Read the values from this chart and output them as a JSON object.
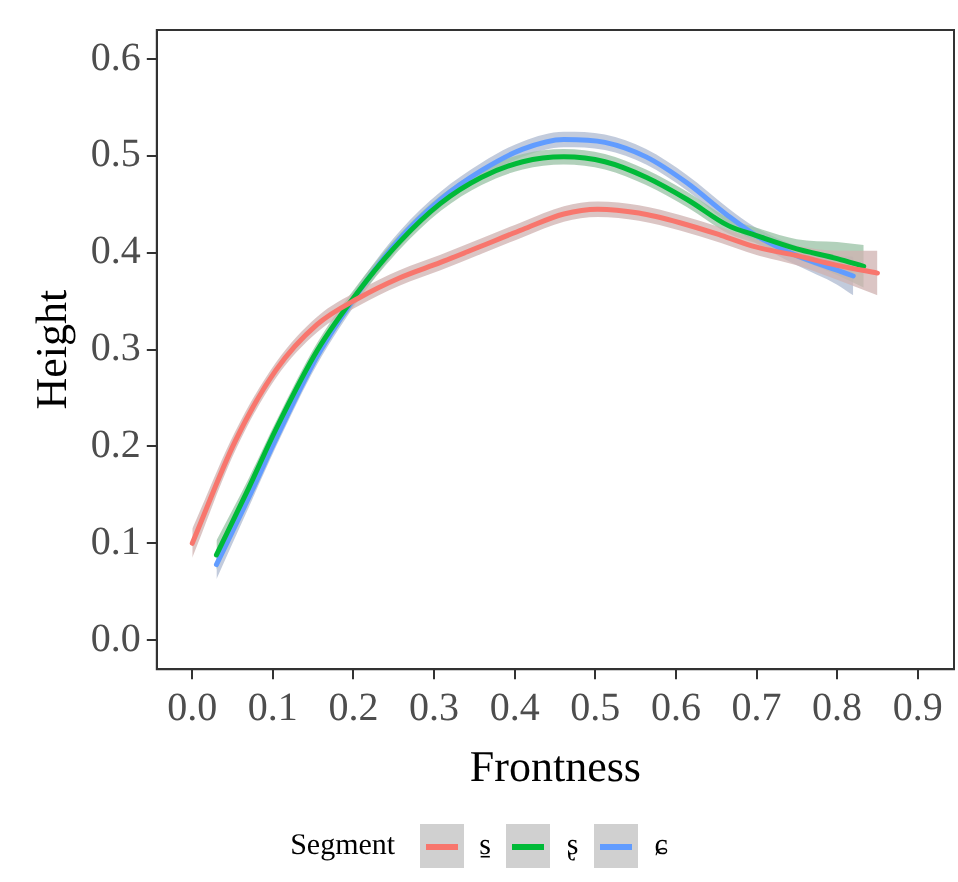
{
  "chart_data": {
    "type": "line",
    "xlabel": "Frontness",
    "ylabel": "Height",
    "legend_title": "Segment",
    "legend": "bottom",
    "grid": false,
    "marker": "none",
    "line_style": "solid",
    "xlim": [
      -0.044,
      0.945
    ],
    "ylim": [
      -0.03,
      0.63
    ],
    "xticks": [
      {
        "value": 0,
        "label": "0.0"
      },
      {
        "value": 0.1,
        "label": "0.1"
      },
      {
        "value": 0.2,
        "label": "0.2"
      },
      {
        "value": 0.3,
        "label": "0.3"
      },
      {
        "value": 0.4,
        "label": "0.4"
      },
      {
        "value": 0.5,
        "label": "0.5"
      },
      {
        "value": 0.6,
        "label": "0.6"
      },
      {
        "value": 0.7,
        "label": "0.7"
      },
      {
        "value": 0.8,
        "label": "0.8"
      },
      {
        "value": 0.9,
        "label": "0.9"
      }
    ],
    "yticks": [
      {
        "value": 0,
        "label": "0.0"
      },
      {
        "value": 0.1,
        "label": "0.1"
      },
      {
        "value": 0.2,
        "label": "0.2"
      },
      {
        "value": 0.3,
        "label": "0.3"
      },
      {
        "value": 0.4,
        "label": "0.4"
      },
      {
        "value": 0.5,
        "label": "0.5"
      },
      {
        "value": 0.6,
        "label": "0.6"
      }
    ],
    "series": [
      {
        "name": "s̱",
        "color": "#f8766d",
        "x": [
          0,
          0.053,
          0.104,
          0.155,
          0.206,
          0.257,
          0.308,
          0.359,
          0.41,
          0.461,
          0.503,
          0.554,
          0.605,
          0.656,
          0.699,
          0.75,
          0.8,
          0.85
        ],
        "values": [
          0.1,
          0.205,
          0.279,
          0.326,
          0.353,
          0.374,
          0.39,
          0.407,
          0.424,
          0.44,
          0.445,
          0.441,
          0.431,
          0.418,
          0.406,
          0.397,
          0.387,
          0.379
        ],
        "lower": [
          0.085,
          0.195,
          0.271,
          0.318,
          0.345,
          0.366,
          0.382,
          0.399,
          0.416,
          0.432,
          0.437,
          0.433,
          0.423,
          0.41,
          0.398,
          0.387,
          0.372,
          0.356
        ],
        "upper": [
          0.115,
          0.215,
          0.287,
          0.334,
          0.361,
          0.382,
          0.398,
          0.415,
          0.432,
          0.448,
          0.453,
          0.449,
          0.439,
          0.426,
          0.414,
          0.407,
          0.402,
          0.402
        ]
      },
      {
        "name": "ʂ",
        "color": "#00ba38",
        "x": [
          0.03,
          0.07,
          0.104,
          0.155,
          0.206,
          0.257,
          0.308,
          0.359,
          0.41,
          0.461,
          0.512,
          0.563,
          0.614,
          0.665,
          0.699,
          0.75,
          0.8,
          0.833
        ],
        "values": [
          0.088,
          0.157,
          0.218,
          0.299,
          0.36,
          0.411,
          0.451,
          0.478,
          0.494,
          0.499,
          0.494,
          0.478,
          0.455,
          0.428,
          0.418,
          0.404,
          0.394,
          0.386
        ],
        "lower": [
          0.073,
          0.147,
          0.21,
          0.291,
          0.352,
          0.403,
          0.443,
          0.47,
          0.486,
          0.491,
          0.486,
          0.47,
          0.447,
          0.42,
          0.41,
          0.394,
          0.377,
          0.364
        ],
        "upper": [
          0.103,
          0.167,
          0.226,
          0.307,
          0.368,
          0.419,
          0.459,
          0.486,
          0.502,
          0.507,
          0.502,
          0.486,
          0.463,
          0.436,
          0.426,
          0.414,
          0.411,
          0.408
        ]
      },
      {
        "name": "ɕ",
        "color": "#619cff",
        "x": [
          0.03,
          0.07,
          0.104,
          0.155,
          0.206,
          0.257,
          0.308,
          0.359,
          0.41,
          0.461,
          0.512,
          0.563,
          0.614,
          0.665,
          0.699,
          0.75,
          0.8,
          0.82
        ],
        "values": [
          0.078,
          0.147,
          0.208,
          0.293,
          0.359,
          0.414,
          0.455,
          0.485,
          0.507,
          0.517,
          0.514,
          0.499,
          0.472,
          0.438,
          0.418,
          0.397,
          0.382,
          0.376
        ],
        "lower": [
          0.063,
          0.137,
          0.2,
          0.285,
          0.351,
          0.406,
          0.447,
          0.477,
          0.499,
          0.509,
          0.506,
          0.491,
          0.464,
          0.43,
          0.41,
          0.387,
          0.367,
          0.356
        ],
        "upper": [
          0.093,
          0.157,
          0.216,
          0.301,
          0.367,
          0.422,
          0.463,
          0.493,
          0.515,
          0.525,
          0.522,
          0.507,
          0.48,
          0.446,
          0.426,
          0.407,
          0.397,
          0.396
        ]
      }
    ]
  }
}
